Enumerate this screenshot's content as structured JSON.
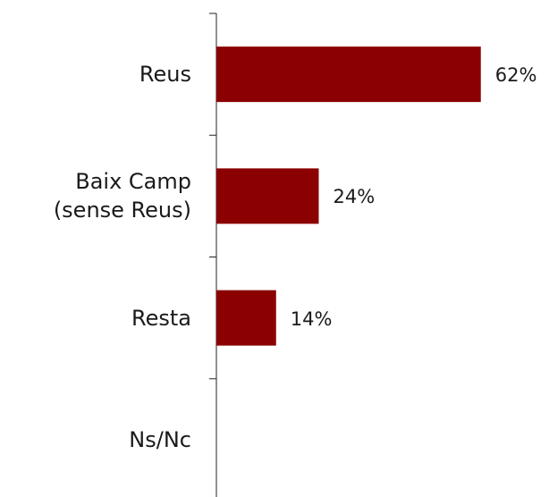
{
  "chart_data": {
    "type": "bar",
    "orientation": "horizontal",
    "categories": [
      "Reus",
      "Baix Camp\n(sense Reus)",
      "Resta",
      "Ns/Nc"
    ],
    "values": [
      62,
      24,
      14,
      null
    ],
    "value_labels": [
      "62%",
      "24%",
      "14%",
      null
    ],
    "color": "#8b0000"
  }
}
